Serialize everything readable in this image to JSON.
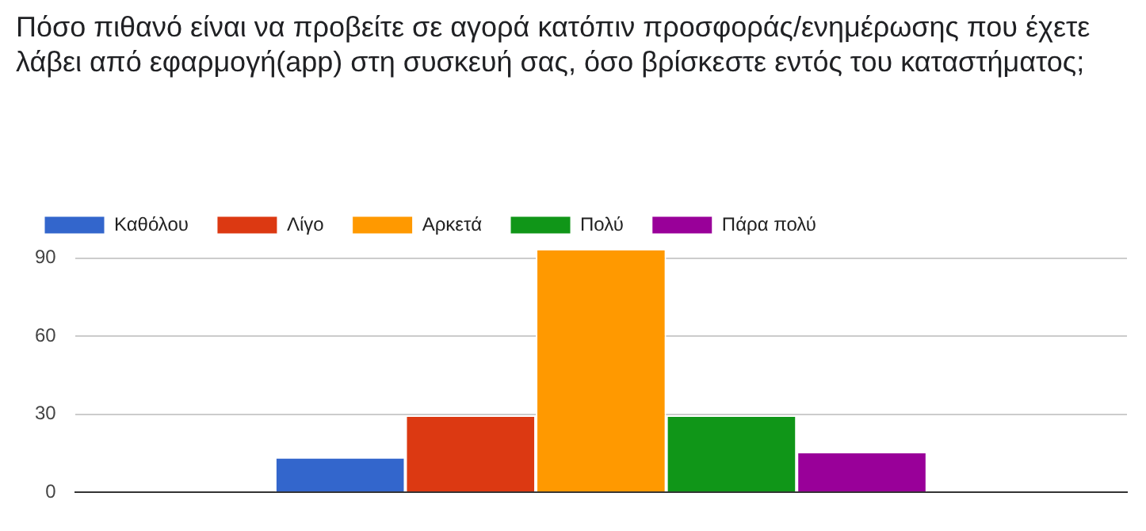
{
  "chart_data": {
    "type": "bar",
    "title": "Πόσο πιθανό είναι να προβείτε σε αγορά κατόπιν προσφοράς/ενημέρωσης που έχετε λάβει από εφαρμογή(app) στη συσκευή σας, όσο βρίσκεστε εντός του καταστήματος;",
    "categories": [
      null
    ],
    "series": [
      {
        "name": "Καθόλου",
        "color": "#3366cc",
        "values": [
          13
        ]
      },
      {
        "name": "Λίγο",
        "color": "#dc3912",
        "values": [
          29
        ]
      },
      {
        "name": "Αρκετά",
        "color": "#ff9900",
        "values": [
          93
        ]
      },
      {
        "name": "Πολύ",
        "color": "#109618",
        "values": [
          29
        ]
      },
      {
        "name": "Πάρα πολύ",
        "color": "#990099",
        "values": [
          15
        ]
      }
    ],
    "ylim": [
      0,
      93
    ],
    "yticks": [
      0,
      30,
      60,
      90
    ],
    "grid": "y",
    "legend": "top left"
  }
}
